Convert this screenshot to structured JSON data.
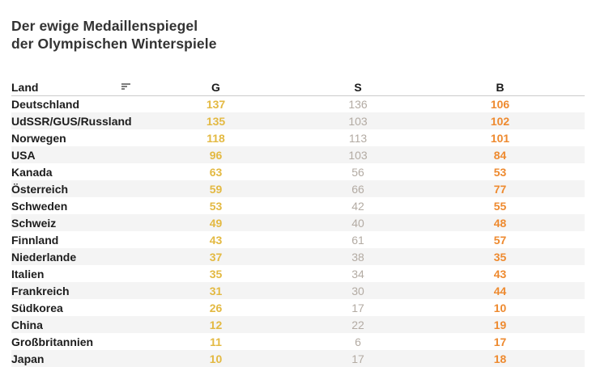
{
  "title": {
    "line1": "Der ewige Medaillenspiegel",
    "line2": "der Olympischen Winterspiele"
  },
  "chart_data": {
    "type": "table",
    "title": "Der ewige Medaillenspiegel der Olympischen Winterspiele",
    "columns": [
      "Land",
      "G",
      "S",
      "B"
    ],
    "sorted_column": "Land",
    "rows": [
      [
        "Deutschland",
        137,
        136,
        106
      ],
      [
        "UdSSR/GUS/Russland",
        135,
        103,
        102
      ],
      [
        "Norwegen",
        118,
        113,
        101
      ],
      [
        "USA",
        96,
        103,
        84
      ],
      [
        "Kanada",
        63,
        56,
        53
      ],
      [
        "Österreich",
        59,
        66,
        77
      ],
      [
        "Schweden",
        53,
        42,
        55
      ],
      [
        "Schweiz",
        49,
        40,
        48
      ],
      [
        "Finnland",
        43,
        61,
        57
      ],
      [
        "Niederlande",
        37,
        38,
        35
      ],
      [
        "Italien",
        35,
        34,
        43
      ],
      [
        "Frankreich",
        31,
        30,
        44
      ],
      [
        "Südkorea",
        26,
        17,
        10
      ],
      [
        "China",
        12,
        22,
        19
      ],
      [
        "Großbritannien",
        11,
        6,
        17
      ],
      [
        "Japan",
        10,
        17,
        18
      ]
    ]
  },
  "colors": {
    "gold": "#E3B942",
    "silver": "#B3ABA3",
    "bronze": "#EE8A2F",
    "stripe": "#F4F4F4",
    "header_line": "#CCCCCC",
    "text": "#333333",
    "sort_icon": "#7D7D7D"
  },
  "icons": {
    "land_sort": "sort-descending-icon"
  }
}
